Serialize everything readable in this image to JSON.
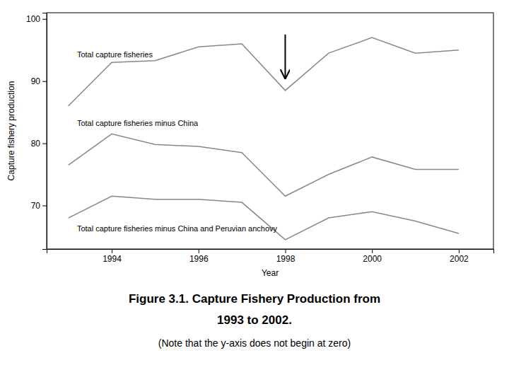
{
  "chart_data": {
    "type": "line",
    "title": [
      "Figure 3.1. Capture Fishery Production from",
      "1993 to 2002."
    ],
    "subtitle": "(Note that the y-axis does not begin at zero)",
    "x_label": "Year",
    "y_label": "Capture fishery production",
    "x": [
      1993,
      1994,
      1995,
      1996,
      1997,
      1998,
      1999,
      2000,
      2001,
      2002
    ],
    "series": [
      {
        "color": "#888888",
        "values": [
          86.0,
          93.0,
          93.3,
          95.5,
          96.0,
          88.5,
          94.5,
          97.0,
          94.5,
          95.0
        ]
      },
      {
        "color": "#888888",
        "values": [
          76.5,
          81.5,
          79.8,
          79.5,
          78.5,
          71.5,
          75.0,
          77.8,
          75.8,
          75.8
        ]
      },
      {
        "color": "#888888",
        "values": [
          68.0,
          71.5,
          71.0,
          71.0,
          70.5,
          64.5,
          68.0,
          69.0,
          67.5,
          65.5
        ]
      }
    ],
    "annotations": [
      {
        "text": "Total capture fisheries",
        "x": 1993.2,
        "y": 93.5
      },
      {
        "text": "Total capture fisheries minus China",
        "x": 1993.2,
        "y": 82.5
      },
      {
        "text": "Total capture fisheries minus China and Peruvian anchovy",
        "x": 1993.2,
        "y": 65.5
      },
      {
        "x": 1998,
        "y": 97.5,
        "y_end": 90.5,
        "color": "#000000"
      }
    ],
    "xlim": [
      1992.5,
      2002.8
    ],
    "ylim": [
      63,
      101
    ],
    "xticks": [
      1994,
      1996,
      1998,
      2000,
      2002
    ],
    "yticks": [
      70,
      80,
      90,
      100
    ],
    "grid": false
  }
}
